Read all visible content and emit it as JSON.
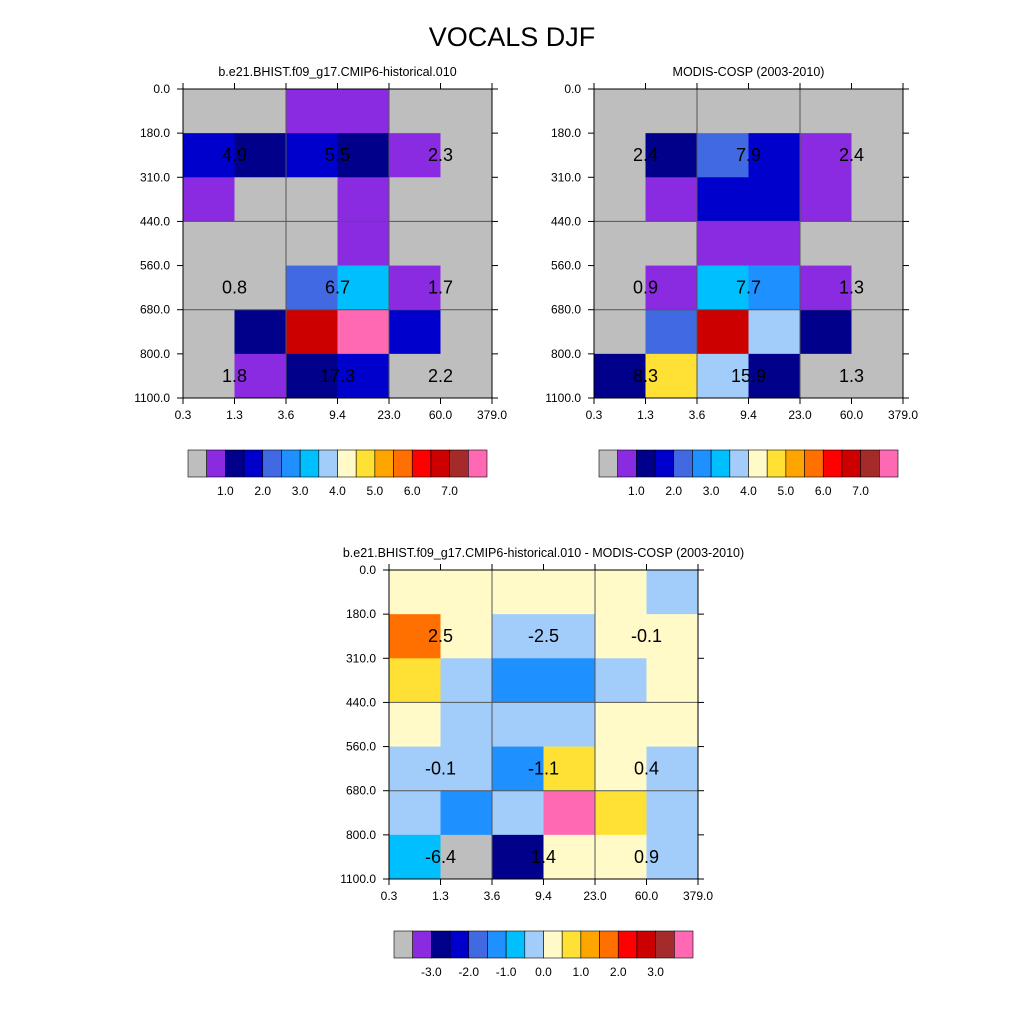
{
  "page_title": "VOCALS DJF",
  "colors": {
    "model_obs_scale": [
      "#bebebe",
      "#8a2be2",
      "#00008b",
      "#0000cd",
      "#4169e1",
      "#1e90ff",
      "#00bfff",
      "#a2cdfa",
      "#fffac8",
      "#ffe135",
      "#ffa500",
      "#ff7000",
      "#ff0000",
      "#cd0000",
      "#a52a2a",
      "#ff69b4"
    ],
    "diff_scale": [
      "#bebebe",
      "#8a2be2",
      "#00008b",
      "#0000cd",
      "#4169e1",
      "#1e90ff",
      "#00bfff",
      "#a2cdfa",
      "#fffac8",
      "#ffe135",
      "#ffa500",
      "#ff7000",
      "#ff0000",
      "#cd0000",
      "#a52a2a",
      "#ff69b4"
    ]
  },
  "chart_data": [
    {
      "type": "heatmap",
      "title": "b.e21.BHIST.f09_g17.CMIP6-historical.010",
      "x_tick_labels": [
        "0.3",
        "1.3",
        "3.6",
        "9.4",
        "23.0",
        "60.0",
        "379.0"
      ],
      "y_tick_labels": [
        "0.0",
        "180.0",
        "310.0",
        "440.0",
        "560.0",
        "680.0",
        "800.0",
        "1100.0"
      ],
      "cell_color_index": [
        [
          0,
          0,
          1,
          1,
          0,
          0
        ],
        [
          3,
          2,
          3,
          2,
          1,
          0
        ],
        [
          1,
          0,
          0,
          1,
          0,
          0
        ],
        [
          0,
          0,
          0,
          1,
          0,
          0
        ],
        [
          0,
          0,
          4,
          6,
          1,
          0
        ],
        [
          0,
          2,
          13,
          15,
          3,
          0
        ],
        [
          0,
          1,
          2,
          3,
          0,
          0
        ]
      ],
      "sums": [
        "4.9",
        "5.5",
        "2.3",
        "0.8",
        "6.7",
        "1.7",
        "1.8",
        "17.3",
        "2.2"
      ],
      "colorbar_labels": [
        "1.0",
        "2.0",
        "3.0",
        "4.0",
        "5.0",
        "6.0",
        "7.0"
      ]
    },
    {
      "type": "heatmap",
      "title": "MODIS-COSP (2003-2010)",
      "x_tick_labels": [
        "0.3",
        "1.3",
        "3.6",
        "9.4",
        "23.0",
        "60.0",
        "379.0"
      ],
      "y_tick_labels": [
        "0.0",
        "180.0",
        "310.0",
        "440.0",
        "560.0",
        "680.0",
        "800.0",
        "1100.0"
      ],
      "cell_color_index": [
        [
          0,
          0,
          0,
          0,
          0,
          0
        ],
        [
          0,
          2,
          4,
          3,
          1,
          0
        ],
        [
          0,
          1,
          3,
          3,
          1,
          0
        ],
        [
          0,
          0,
          1,
          1,
          0,
          0
        ],
        [
          0,
          1,
          6,
          5,
          1,
          0
        ],
        [
          0,
          4,
          13,
          7,
          2,
          0
        ],
        [
          2,
          9,
          7,
          2,
          0,
          0
        ]
      ],
      "sums": [
        "2.4",
        "7.9",
        "2.4",
        "0.9",
        "7.7",
        "1.3",
        "8.3",
        "15.9",
        "1.3"
      ],
      "colorbar_labels": [
        "1.0",
        "2.0",
        "3.0",
        "4.0",
        "5.0",
        "6.0",
        "7.0"
      ]
    },
    {
      "type": "heatmap",
      "title": "b.e21.BHIST.f09_g17.CMIP6-historical.010 - MODIS-COSP (2003-2010)",
      "x_tick_labels": [
        "0.3",
        "1.3",
        "3.6",
        "9.4",
        "23.0",
        "60.0",
        "379.0"
      ],
      "y_tick_labels": [
        "0.0",
        "180.0",
        "310.0",
        "440.0",
        "560.0",
        "680.0",
        "800.0",
        "1100.0"
      ],
      "cell_color_index": [
        [
          8,
          8,
          8,
          8,
          8,
          7
        ],
        [
          11,
          8,
          7,
          7,
          8,
          8
        ],
        [
          9,
          7,
          5,
          5,
          7,
          8
        ],
        [
          8,
          7,
          7,
          7,
          8,
          8
        ],
        [
          7,
          7,
          5,
          9,
          8,
          7
        ],
        [
          7,
          5,
          7,
          15,
          9,
          7
        ],
        [
          6,
          0,
          2,
          8,
          8,
          7
        ]
      ],
      "sums": [
        "2.5",
        "-2.5",
        "-0.1",
        "-0.1",
        "-1.1",
        "0.4",
        "-6.4",
        "1.4",
        "0.9"
      ],
      "colorbar_labels": [
        "-3.0",
        "-2.0",
        "-1.0",
        "0.0",
        "1.0",
        "2.0",
        "3.0"
      ]
    }
  ]
}
